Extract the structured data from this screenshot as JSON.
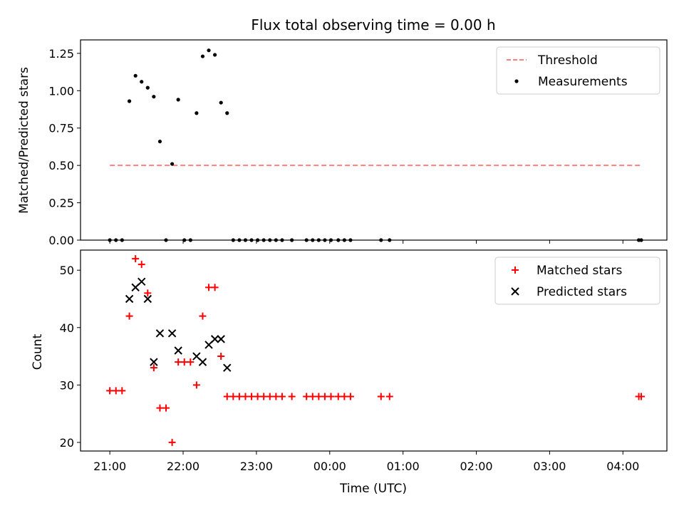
{
  "chart_data": [
    {
      "type": "scatter",
      "title": "Flux total observing time = 0.00 h",
      "xlabel": "",
      "ylabel": "Matched/Predicted stars",
      "x_unit": "time (UTC)",
      "xlim": [
        "20:36",
        "04:36"
      ],
      "ylim": [
        0,
        1.34
      ],
      "yticks": [
        "0.00",
        "0.25",
        "0.50",
        "0.75",
        "1.00",
        "1.25"
      ],
      "grid": false,
      "legend_position": "upper right",
      "series": [
        {
          "name": "Threshold",
          "kind": "dashed-line",
          "color": "#ff8080",
          "points": [
            {
              "x": "21:00",
              "y": 0.5
            },
            {
              "x": "04:15",
              "y": 0.5
            }
          ]
        },
        {
          "name": "Measurements",
          "kind": "dots",
          "color": "#000000",
          "points": [
            {
              "x": "21:00",
              "y": 0
            },
            {
              "x": "21:05",
              "y": 0
            },
            {
              "x": "21:10",
              "y": 0
            },
            {
              "x": "21:16",
              "y": 0.93
            },
            {
              "x": "21:21",
              "y": 1.1
            },
            {
              "x": "21:26",
              "y": 1.06
            },
            {
              "x": "21:31",
              "y": 1.02
            },
            {
              "x": "21:36",
              "y": 0.96
            },
            {
              "x": "21:41",
              "y": 0.66
            },
            {
              "x": "21:46",
              "y": 0
            },
            {
              "x": "21:51",
              "y": 0.51
            },
            {
              "x": "21:56",
              "y": 0.94
            },
            {
              "x": "22:01",
              "y": 0
            },
            {
              "x": "22:06",
              "y": 0
            },
            {
              "x": "22:11",
              "y": 0.85
            },
            {
              "x": "22:16",
              "y": 1.23
            },
            {
              "x": "22:21",
              "y": 1.27
            },
            {
              "x": "22:26",
              "y": 1.24
            },
            {
              "x": "22:31",
              "y": 0.92
            },
            {
              "x": "22:36",
              "y": 0.85
            },
            {
              "x": "22:41",
              "y": 0
            },
            {
              "x": "22:46",
              "y": 0
            },
            {
              "x": "22:51",
              "y": 0
            },
            {
              "x": "22:56",
              "y": 0
            },
            {
              "x": "23:01",
              "y": 0
            },
            {
              "x": "23:06",
              "y": 0
            },
            {
              "x": "23:11",
              "y": 0
            },
            {
              "x": "23:16",
              "y": 0
            },
            {
              "x": "23:21",
              "y": 0
            },
            {
              "x": "23:29",
              "y": 0
            },
            {
              "x": "23:41",
              "y": 0
            },
            {
              "x": "23:46",
              "y": 0
            },
            {
              "x": "23:51",
              "y": 0
            },
            {
              "x": "23:56",
              "y": 0
            },
            {
              "x": "00:01",
              "y": 0
            },
            {
              "x": "00:07",
              "y": 0
            },
            {
              "x": "00:12",
              "y": 0
            },
            {
              "x": "00:17",
              "y": 0
            },
            {
              "x": "00:42",
              "y": 0
            },
            {
              "x": "00:49",
              "y": 0
            },
            {
              "x": "04:13",
              "y": 0
            },
            {
              "x": "04:15",
              "y": 0
            }
          ]
        }
      ]
    },
    {
      "type": "scatter",
      "title": "",
      "xlabel": "Time (UTC)",
      "ylabel": "Count",
      "xlim": [
        "20:36",
        "04:36"
      ],
      "xticks": [
        "21:00",
        "22:00",
        "23:00",
        "00:00",
        "01:00",
        "02:00",
        "03:00",
        "04:00"
      ],
      "ylim": [
        18.5,
        53.5
      ],
      "yticks": [
        "20",
        "30",
        "40",
        "50"
      ],
      "grid": false,
      "legend_position": "upper right",
      "series": [
        {
          "name": "Matched stars",
          "kind": "plus",
          "color": "#ff0000",
          "points": [
            {
              "x": "21:00",
              "y": 29
            },
            {
              "x": "21:05",
              "y": 29
            },
            {
              "x": "21:10",
              "y": 29
            },
            {
              "x": "21:16",
              "y": 42
            },
            {
              "x": "21:21",
              "y": 52
            },
            {
              "x": "21:26",
              "y": 51
            },
            {
              "x": "21:31",
              "y": 46
            },
            {
              "x": "21:36",
              "y": 33
            },
            {
              "x": "21:41",
              "y": 26
            },
            {
              "x": "21:46",
              "y": 26
            },
            {
              "x": "21:51",
              "y": 20
            },
            {
              "x": "21:56",
              "y": 34
            },
            {
              "x": "22:01",
              "y": 34
            },
            {
              "x": "22:06",
              "y": 34
            },
            {
              "x": "22:11",
              "y": 30
            },
            {
              "x": "22:16",
              "y": 42
            },
            {
              "x": "22:21",
              "y": 47
            },
            {
              "x": "22:26",
              "y": 47
            },
            {
              "x": "22:31",
              "y": 35
            },
            {
              "x": "22:36",
              "y": 28
            },
            {
              "x": "22:41",
              "y": 28
            },
            {
              "x": "22:46",
              "y": 28
            },
            {
              "x": "22:51",
              "y": 28
            },
            {
              "x": "22:56",
              "y": 28
            },
            {
              "x": "23:01",
              "y": 28
            },
            {
              "x": "23:06",
              "y": 28
            },
            {
              "x": "23:11",
              "y": 28
            },
            {
              "x": "23:16",
              "y": 28
            },
            {
              "x": "23:21",
              "y": 28
            },
            {
              "x": "23:29",
              "y": 28
            },
            {
              "x": "23:41",
              "y": 28
            },
            {
              "x": "23:46",
              "y": 28
            },
            {
              "x": "23:51",
              "y": 28
            },
            {
              "x": "23:56",
              "y": 28
            },
            {
              "x": "00:01",
              "y": 28
            },
            {
              "x": "00:07",
              "y": 28
            },
            {
              "x": "00:12",
              "y": 28
            },
            {
              "x": "00:17",
              "y": 28
            },
            {
              "x": "00:42",
              "y": 28
            },
            {
              "x": "00:49",
              "y": 28
            },
            {
              "x": "04:13",
              "y": 28
            },
            {
              "x": "04:15",
              "y": 28
            }
          ]
        },
        {
          "name": "Predicted stars",
          "kind": "x",
          "color": "#000000",
          "points": [
            {
              "x": "21:16",
              "y": 45
            },
            {
              "x": "21:21",
              "y": 47
            },
            {
              "x": "21:26",
              "y": 48
            },
            {
              "x": "21:31",
              "y": 45
            },
            {
              "x": "21:36",
              "y": 34
            },
            {
              "x": "21:41",
              "y": 39
            },
            {
              "x": "21:51",
              "y": 39
            },
            {
              "x": "21:56",
              "y": 36
            },
            {
              "x": "22:11",
              "y": 35
            },
            {
              "x": "22:16",
              "y": 34
            },
            {
              "x": "22:21",
              "y": 37
            },
            {
              "x": "22:26",
              "y": 38
            },
            {
              "x": "22:31",
              "y": 38
            },
            {
              "x": "22:36",
              "y": 33
            }
          ]
        }
      ]
    }
  ]
}
